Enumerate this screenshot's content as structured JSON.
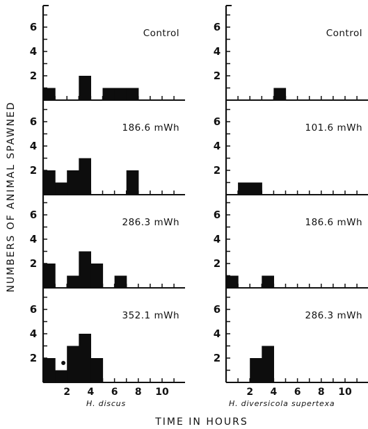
{
  "chart_data": {
    "type": "bar",
    "ylabel": "NUMBERS OF ANIMAL SPAWNED",
    "xlabel": "TIME IN HOURS",
    "x_ticks": [
      "2",
      "4",
      "6",
      "8",
      "10"
    ],
    "y_ticks": [
      "2",
      "4",
      "6"
    ],
    "xlim": [
      0,
      11.5
    ],
    "ylim": [
      0,
      7.5
    ],
    "columns": [
      {
        "species": "H. discus",
        "panels": [
          {
            "condition": "Control",
            "bars": [
              {
                "x": 0,
                "value": 1
              },
              {
                "x": 3,
                "value": 2
              },
              {
                "x": 5,
                "value": 1
              },
              {
                "x": 6,
                "value": 1
              },
              {
                "x": 7,
                "value": 1
              }
            ]
          },
          {
            "condition": "186.6 mWh",
            "bars": [
              {
                "x": 0,
                "value": 2
              },
              {
                "x": 1,
                "value": 1
              },
              {
                "x": 2,
                "value": 2
              },
              {
                "x": 3,
                "value": 3
              },
              {
                "x": 7,
                "value": 2
              }
            ]
          },
          {
            "condition": "286.3 mWh",
            "bars": [
              {
                "x": 0,
                "value": 2
              },
              {
                "x": 2,
                "value": 1
              },
              {
                "x": 3,
                "value": 3
              },
              {
                "x": 4,
                "value": 2
              },
              {
                "x": 6,
                "value": 1
              }
            ]
          },
          {
            "condition": "352.1 mWh",
            "bars": [
              {
                "x": 0,
                "value": 2
              },
              {
                "x": 1,
                "value": 1
              },
              {
                "x": 2,
                "value": 3
              },
              {
                "x": 3,
                "value": 4
              },
              {
                "x": 4,
                "value": 2
              }
            ],
            "marker": {
              "x": 1.7,
              "value": 1.6
            }
          }
        ]
      },
      {
        "species": "H. diversicola supertexa",
        "panels": [
          {
            "condition": "Control",
            "bars": [
              {
                "x": 4,
                "value": 1
              }
            ]
          },
          {
            "condition": "101.6 mWh",
            "bars": [
              {
                "x": 1,
                "value": 1
              },
              {
                "x": 2,
                "value": 1
              }
            ]
          },
          {
            "condition": "186.6 mWh",
            "bars": [
              {
                "x": 0,
                "value": 1
              },
              {
                "x": 3,
                "value": 1
              }
            ]
          },
          {
            "condition": "286.3 mWh",
            "bars": [
              {
                "x": 2,
                "value": 2
              },
              {
                "x": 3,
                "value": 3
              }
            ]
          }
        ]
      }
    ]
  }
}
